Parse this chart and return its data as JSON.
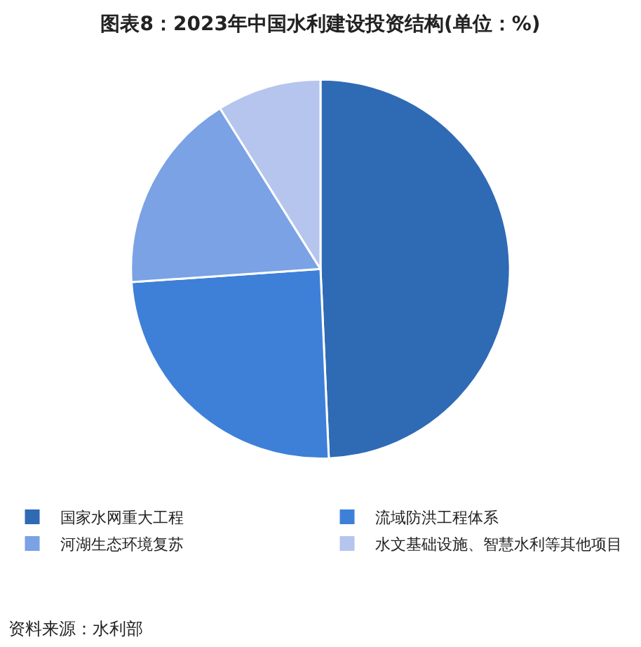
{
  "chart_data": {
    "type": "pie",
    "title": "图表8：2023年中国水利建设投资结构(单位：%)",
    "categories": [
      "国家水网重大工程",
      "流域防洪工程体系",
      "河湖生态环境复苏",
      "水文基础设施、智慧水利等其他项目"
    ],
    "values": [
      49.3,
      24.6,
      17.2,
      8.9
    ],
    "colors": [
      "#2f6ab5",
      "#3e80d8",
      "#7aa2e4",
      "#b5c5ee"
    ],
    "legend": "bottom",
    "annotations": [
      "资料来源：水利部"
    ]
  }
}
